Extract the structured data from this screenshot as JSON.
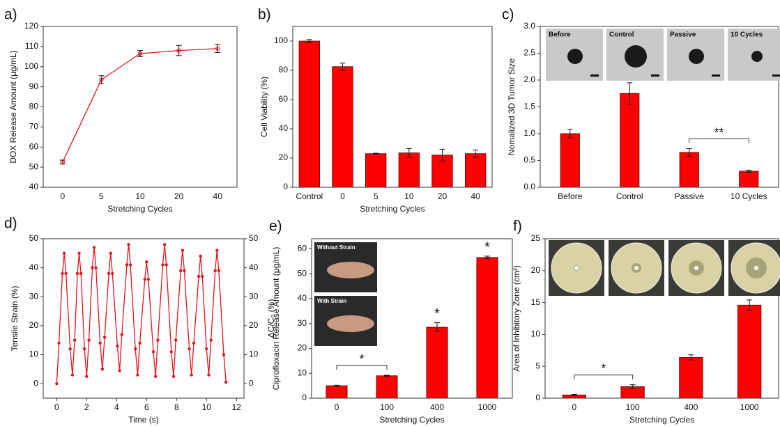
{
  "chart_data": [
    {
      "type": "line",
      "label": "a)",
      "color": "#e8141b",
      "categories": [
        "0",
        "5",
        "10",
        "20",
        "40"
      ],
      "values": [
        52.5,
        93.5,
        106.5,
        108,
        109
      ],
      "errors": [
        1,
        2,
        1.5,
        2.5,
        2
      ],
      "ylim": [
        40,
        120
      ],
      "yticks": [
        40,
        50,
        60,
        70,
        80,
        90,
        100,
        110,
        120
      ],
      "xlabel": "Stretching Cycles",
      "ylabel": "DOX Release Amount (μg/mL)"
    },
    {
      "type": "bar",
      "label": "b)",
      "color": "#ff0000",
      "categories": [
        "Control",
        "0",
        "5",
        "10",
        "20",
        "40"
      ],
      "values": [
        100,
        82.5,
        23,
        23.5,
        22,
        23
      ],
      "errors": [
        1,
        2.5,
        0.3,
        3,
        4,
        2.5
      ],
      "ylim": [
        0,
        110
      ],
      "yticks": [
        0,
        20,
        40,
        60,
        80,
        100
      ],
      "xlabel": "Stretching Cycles",
      "ylabel": "Cell Viability (%)"
    },
    {
      "type": "bar",
      "label": "c)",
      "color": "#ff0000",
      "categories": [
        "Before",
        "Control",
        "Passive",
        "10 Cycles"
      ],
      "values": [
        1.0,
        1.75,
        0.65,
        0.3
      ],
      "errors": [
        0.08,
        0.2,
        0.07,
        0.02
      ],
      "ylim": [
        0,
        3.0
      ],
      "yticks": [
        {
          "value": 0,
          "label": "0.0"
        },
        0.5,
        {
          "value": 1,
          "label": "1.0"
        },
        1.5,
        {
          "value": 2,
          "label": "2.0"
        },
        2.5,
        {
          "value": 3,
          "label": "3.0"
        }
      ],
      "ylabel": "Nomalized 3D Tumor Size",
      "brackets": [
        {
          "text": "**",
          "from": "Passive",
          "to": "10 Cycles"
        }
      ],
      "photos": [
        "Before",
        "Control",
        "Passive",
        "10 Cycles"
      ]
    },
    {
      "type": "line",
      "label": "d)",
      "color": "#e8141b",
      "x": [
        0,
        0.15,
        0.38,
        0.5,
        0.62,
        0.9,
        1.05,
        1.2,
        1.38,
        1.5,
        1.62,
        1.85,
        2.0,
        2.15,
        2.38,
        2.5,
        2.62,
        2.9,
        3.05,
        3.2,
        3.48,
        3.6,
        3.72,
        4.05,
        4.2,
        4.35,
        4.68,
        4.8,
        4.92,
        5.25,
        5.4,
        5.55,
        5.88,
        6.0,
        6.12,
        6.45,
        6.6,
        6.75,
        7.08,
        7.2,
        7.32,
        7.65,
        7.8,
        7.95,
        8.28,
        8.4,
        8.52,
        8.85,
        9.0,
        9.15,
        9.48,
        9.6,
        9.72,
        10.0,
        10.15,
        10.3,
        10.58,
        10.7,
        10.82,
        11.15,
        11.3
      ],
      "values": [
        0,
        14,
        38,
        45,
        38,
        12,
        3,
        15,
        38,
        45,
        38,
        12,
        2.5,
        15,
        40,
        47,
        40,
        14,
        5,
        16,
        38,
        45,
        38,
        13,
        4.5,
        17,
        41,
        48,
        41,
        12,
        3,
        14,
        36,
        42,
        36,
        11,
        2.5,
        15,
        41,
        48,
        41,
        11,
        2.5,
        15,
        39,
        46,
        39,
        12,
        3,
        14,
        37,
        44,
        37,
        12,
        3,
        15,
        39,
        46,
        39,
        10,
        0.5
      ],
      "xlim": [
        -0.9,
        12.5
      ],
      "xticks": [
        0,
        2,
        4,
        6,
        8,
        10,
        12
      ],
      "ylim": [
        -5,
        50
      ],
      "yticks": [
        0,
        10,
        20,
        30,
        40,
        50
      ],
      "y2lim": [
        -5,
        50
      ],
      "y2ticks": [
        0,
        10,
        20,
        30,
        40,
        50
      ],
      "xlabel": "Time (s)",
      "ylabel": "Tensile Strain (%)",
      "y2label": "ΔC/C₀ (%)"
    },
    {
      "type": "bar",
      "label": "e)",
      "color": "#ff0000",
      "categories": [
        "0",
        "100",
        "400",
        "1000"
      ],
      "values": [
        5,
        9,
        28.5,
        56.5
      ],
      "errors": [
        0.2,
        0.2,
        1.8,
        0.5
      ],
      "ylim": [
        0,
        64
      ],
      "yticks": [
        0,
        10,
        20,
        30,
        40,
        50,
        60
      ],
      "xlabel": "Stretching Cycles",
      "ylabel": "Ciprofloxacin Release Amount (μg/mL)",
      "bar_labels": [
        null,
        null,
        "*",
        "*"
      ],
      "brackets": [
        {
          "text": "*",
          "from": "0",
          "to": "100"
        }
      ],
      "photos": [
        "Without Strain",
        "With Strain"
      ]
    },
    {
      "type": "bar",
      "label": "f)",
      "color": "#ff0000",
      "categories": [
        "0",
        "100",
        "400",
        "1000"
      ],
      "values": [
        0.5,
        1.8,
        6.4,
        14.6
      ],
      "errors": [
        0.1,
        0.3,
        0.4,
        0.8
      ],
      "ylim": [
        0,
        25
      ],
      "yticks": [
        0,
        5,
        10,
        15,
        20,
        25
      ],
      "xlabel": "Stretching Cycles",
      "ylabel": "Area of Inhibitory Zone (cm²)",
      "brackets": [
        {
          "text": "*",
          "from": "0",
          "to": "100"
        }
      ]
    }
  ]
}
